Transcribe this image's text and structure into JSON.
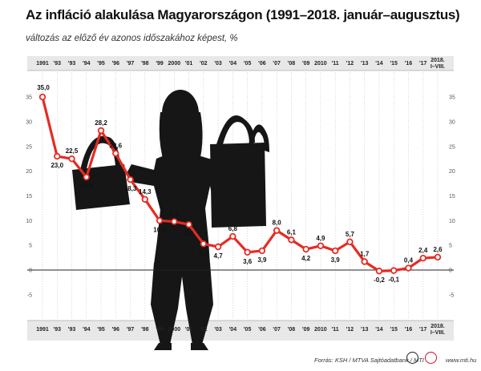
{
  "title": "Az infláció alakulása Magyarországon (1991–2018. január–augusztus)",
  "subtitle": "változás az előző év azonos időszakához képest, %",
  "footer": {
    "source": "Forrás: KSH / MTVA Sajtóadatbank / MTI",
    "website": "www.mti.hu"
  },
  "colors": {
    "line": "#e52b24",
    "marker_fill": "#ffffff",
    "grid": "#bbbbbb",
    "band": "#e8e8e8",
    "silhouette": "#161616"
  },
  "chart_data": {
    "type": "line",
    "categories": [
      "1991",
      "'93",
      "'93",
      "'94",
      "'95",
      "'96",
      "'97",
      "'98",
      "'99",
      "2000",
      "'01",
      "'02",
      "'03",
      "'04",
      "'05",
      "'06",
      "'07",
      "'08",
      "'09",
      "2010",
      "'11",
      "'12",
      "'13",
      "'14",
      "'15",
      "'16",
      "'17",
      "2018. I–VIII."
    ],
    "x_tick_labels": [
      "1991",
      "'93",
      "'93",
      "'94",
      "'95",
      "'96",
      "'97",
      "'98",
      "'99",
      "2000",
      "'01",
      "'02",
      "'03",
      "'04",
      "'05",
      "'06",
      "'07",
      "'08",
      "'09",
      "2010",
      "'11",
      "'12",
      "'13",
      "'14",
      "'15",
      "'16",
      "'17",
      "2018.|I–VIII."
    ],
    "series": [
      {
        "values": [
          35.0,
          23.0,
          22.5,
          18.8,
          28.2,
          23.6,
          18.3,
          14.3,
          10.0,
          9.8,
          9.2,
          5.3,
          4.7,
          6.8,
          3.6,
          3.9,
          8.0,
          6.1,
          4.2,
          4.9,
          3.9,
          5.7,
          1.7,
          -0.2,
          -0.1,
          0.4,
          2.4,
          2.6
        ],
        "labels": [
          "35,0",
          "23,0",
          "22,5",
          "18,8",
          "28,2",
          "23,6",
          "18,3",
          "14,3",
          "10,0",
          "9,8",
          "9,2",
          "5,3",
          "4,7",
          "6,8",
          "3,6",
          "3,9",
          "8,0",
          "6,1",
          "4,2",
          "4,9",
          "3,9",
          "5,7",
          "1,7",
          "-0,2",
          "-0,1",
          "0,4",
          "2,4",
          "2,6"
        ]
      }
    ],
    "y_ticks": [
      -5,
      0,
      5,
      10,
      15,
      20,
      25,
      30,
      35
    ],
    "ylim": [
      -8,
      37
    ],
    "grid": "vertical dotted",
    "legend": "none"
  }
}
